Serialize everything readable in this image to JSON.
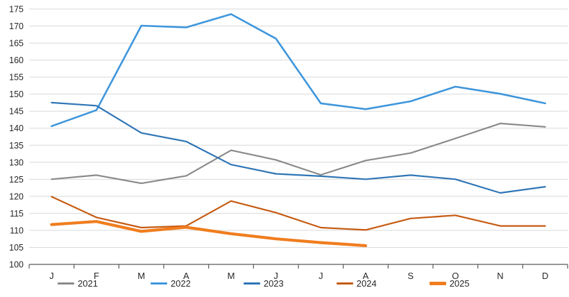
{
  "page": {
    "background_color": "#ffffff",
    "text_color": "#262626",
    "grid_color": "#d9d9d9",
    "axis_color": "#595959"
  },
  "chart_data": {
    "type": "line",
    "title": "",
    "xlabel": "",
    "ylabel": "",
    "categories": [
      "J",
      "F",
      "M",
      "A",
      "M",
      "J",
      "J",
      "A",
      "S",
      "O",
      "N",
      "D"
    ],
    "ylim": [
      100,
      175
    ],
    "ytick_step": 5,
    "y_tick_labels": [
      "100",
      "105",
      "110",
      "115",
      "120",
      "125",
      "130",
      "135",
      "140",
      "145",
      "150",
      "155",
      "160",
      "165",
      "170",
      "175"
    ],
    "grid": true,
    "legend_position": "bottom",
    "series": [
      {
        "name": "2021",
        "color": "#8a8a8a",
        "line_width": 2.2,
        "values": [
          125.0,
          126.2,
          123.8,
          126.0,
          133.5,
          130.7,
          126.3,
          130.5,
          132.7,
          137.0,
          141.4,
          140.4
        ]
      },
      {
        "name": "2022",
        "color": "#3e96dc",
        "line_width": 2.6,
        "values": [
          140.6,
          145.3,
          170.1,
          169.6,
          173.5,
          166.3,
          147.3,
          145.6,
          147.9,
          152.2,
          150.1,
          147.3
        ]
      },
      {
        "name": "2023",
        "color": "#2e75b6",
        "line_width": 2.2,
        "values": [
          147.5,
          146.6,
          138.6,
          136.1,
          129.3,
          126.6,
          125.9,
          125.0,
          126.2,
          125.0,
          121.0,
          122.8
        ]
      },
      {
        "name": "2024",
        "color": "#c55a11",
        "line_width": 2.2,
        "values": [
          119.9,
          113.8,
          110.8,
          111.3,
          118.6,
          115.2,
          110.8,
          110.1,
          113.5,
          114.4,
          111.3,
          111.3
        ]
      },
      {
        "name": "2025",
        "color": "#f07d1f",
        "line_width": 4.2,
        "values": [
          111.7,
          112.6,
          109.7,
          110.9,
          109.0,
          107.5,
          106.4,
          105.5
        ]
      }
    ]
  }
}
